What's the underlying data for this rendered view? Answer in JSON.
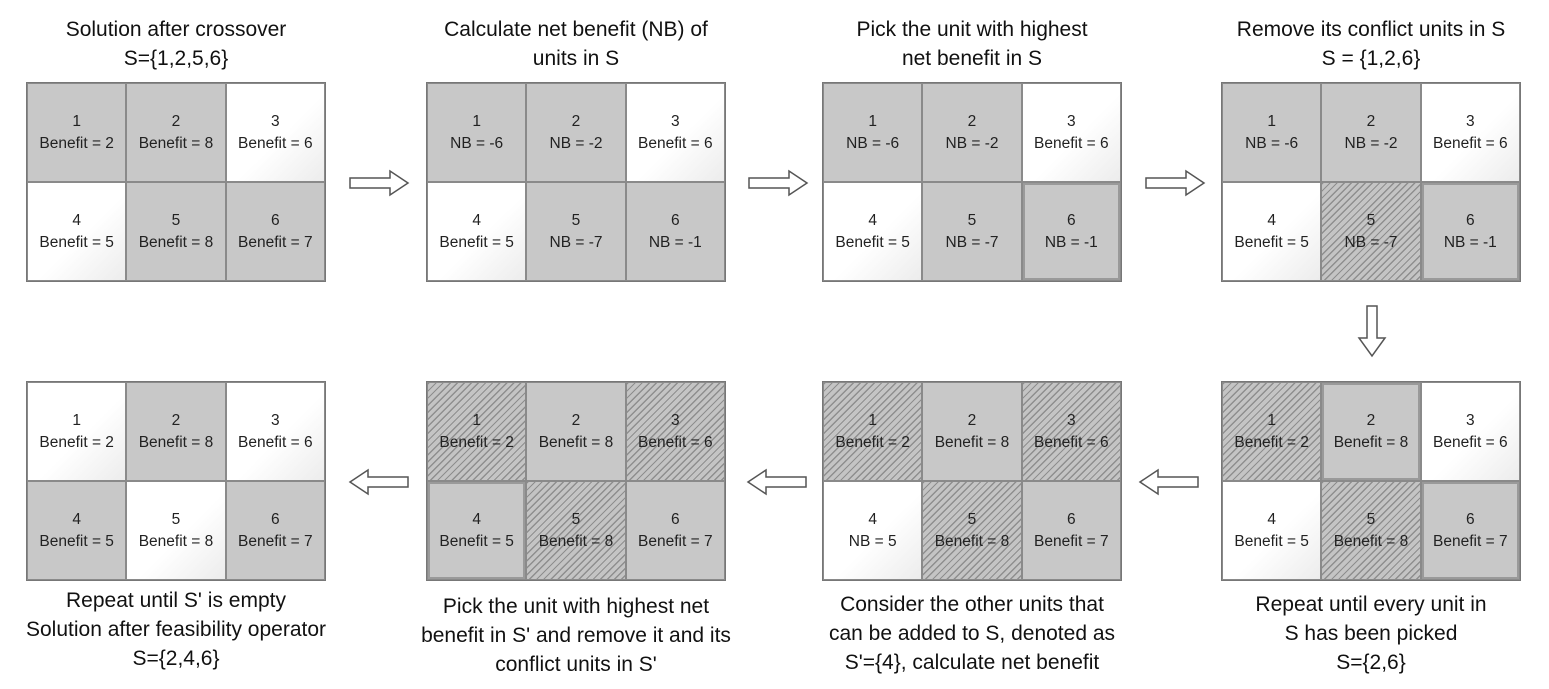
{
  "colors": {
    "gray": "#c8c8c8",
    "white": "#ffffff",
    "hatch": "#8e8e8e",
    "border": "#777777"
  },
  "panels": [
    {
      "caption": [
        "Solution after crossover",
        "S={1,2,5,6}"
      ],
      "cells": [
        {
          "num": "1",
          "text": "Benefit = 2",
          "fill": "gray"
        },
        {
          "num": "2",
          "text": "Benefit = 8",
          "fill": "gray"
        },
        {
          "num": "3",
          "text": "Benefit = 6",
          "fill": "white"
        },
        {
          "num": "4",
          "text": "Benefit = 5",
          "fill": "white"
        },
        {
          "num": "5",
          "text": "Benefit = 8",
          "fill": "gray"
        },
        {
          "num": "6",
          "text": "Benefit = 7",
          "fill": "gray"
        }
      ]
    },
    {
      "caption": [
        "Calculate net benefit (NB) of",
        "units in S"
      ],
      "cells": [
        {
          "num": "1",
          "text": "NB = -6",
          "fill": "gray"
        },
        {
          "num": "2",
          "text": "NB = -2",
          "fill": "gray"
        },
        {
          "num": "3",
          "text": "Benefit = 6",
          "fill": "white"
        },
        {
          "num": "4",
          "text": "Benefit = 5",
          "fill": "white"
        },
        {
          "num": "5",
          "text": "NB = -7",
          "fill": "gray"
        },
        {
          "num": "6",
          "text": "NB = -1",
          "fill": "gray"
        }
      ]
    },
    {
      "caption": [
        "Pick the unit with highest",
        "net benefit in S"
      ],
      "cells": [
        {
          "num": "1",
          "text": "NB = -6",
          "fill": "gray"
        },
        {
          "num": "2",
          "text": "NB = -2",
          "fill": "gray"
        },
        {
          "num": "3",
          "text": "Benefit = 6",
          "fill": "white"
        },
        {
          "num": "4",
          "text": "Benefit = 5",
          "fill": "white"
        },
        {
          "num": "5",
          "text": "NB = -7",
          "fill": "gray"
        },
        {
          "num": "6",
          "text": "NB = -1",
          "fill": "gray",
          "selected": true
        }
      ]
    },
    {
      "caption": [
        "Remove its conflict units in S",
        "S = {1,2,6}"
      ],
      "cells": [
        {
          "num": "1",
          "text": "NB = -6",
          "fill": "gray"
        },
        {
          "num": "2",
          "text": "NB = -2",
          "fill": "gray"
        },
        {
          "num": "3",
          "text": "Benefit = 6",
          "fill": "white"
        },
        {
          "num": "4",
          "text": "Benefit = 5",
          "fill": "white"
        },
        {
          "num": "5",
          "text": "NB = -7",
          "fill": "hatch"
        },
        {
          "num": "6",
          "text": "NB = -1",
          "fill": "gray",
          "selected": true
        }
      ]
    },
    {
      "caption": [
        "Repeat until every unit in",
        "S has been picked",
        "S={2,6}"
      ],
      "cells": [
        {
          "num": "1",
          "text": "Benefit = 2",
          "fill": "hatch"
        },
        {
          "num": "2",
          "text": "Benefit = 8",
          "fill": "gray",
          "selected": true
        },
        {
          "num": "3",
          "text": "Benefit = 6",
          "fill": "white"
        },
        {
          "num": "4",
          "text": "Benefit = 5",
          "fill": "white"
        },
        {
          "num": "5",
          "text": "Benefit = 8",
          "fill": "hatch"
        },
        {
          "num": "6",
          "text": "Benefit = 7",
          "fill": "gray",
          "selected": true
        }
      ]
    },
    {
      "caption": [
        "Consider the other units that",
        "can be added to S, denoted as",
        "S'={4}, calculate net benefit"
      ],
      "cells": [
        {
          "num": "1",
          "text": "Benefit = 2",
          "fill": "hatch"
        },
        {
          "num": "2",
          "text": "Benefit = 8",
          "fill": "gray"
        },
        {
          "num": "3",
          "text": "Benefit = 6",
          "fill": "hatch"
        },
        {
          "num": "4",
          "text": "NB = 5",
          "fill": "white"
        },
        {
          "num": "5",
          "text": "Benefit = 8",
          "fill": "hatch"
        },
        {
          "num": "6",
          "text": "Benefit = 7",
          "fill": "gray"
        }
      ]
    },
    {
      "caption": [
        "Pick the unit with highest net",
        "benefit in S' and remove it and its",
        "conflict units in S'"
      ],
      "cells": [
        {
          "num": "1",
          "text": "Benefit = 2",
          "fill": "hatch"
        },
        {
          "num": "2",
          "text": "Benefit = 8",
          "fill": "gray"
        },
        {
          "num": "3",
          "text": "Benefit = 6",
          "fill": "hatch"
        },
        {
          "num": "4",
          "text": "Benefit = 5",
          "fill": "gray",
          "selected": true
        },
        {
          "num": "5",
          "text": "Benefit = 8",
          "fill": "hatch"
        },
        {
          "num": "6",
          "text": "Benefit = 7",
          "fill": "gray"
        }
      ]
    },
    {
      "caption": [
        "Repeat until S' is empty",
        "Solution after feasibility operator",
        "S={2,4,6}"
      ],
      "cells": [
        {
          "num": "1",
          "text": "Benefit = 2",
          "fill": "white"
        },
        {
          "num": "2",
          "text": "Benefit = 8",
          "fill": "gray"
        },
        {
          "num": "3",
          "text": "Benefit = 6",
          "fill": "white"
        },
        {
          "num": "4",
          "text": "Benefit = 5",
          "fill": "gray"
        },
        {
          "num": "5",
          "text": "Benefit = 8",
          "fill": "white"
        },
        {
          "num": "6",
          "text": "Benefit = 7",
          "fill": "gray"
        }
      ]
    }
  ],
  "arrows": [
    {
      "dir": "right"
    },
    {
      "dir": "right"
    },
    {
      "dir": "right"
    },
    {
      "dir": "down"
    },
    {
      "dir": "left"
    },
    {
      "dir": "left"
    },
    {
      "dir": "left"
    }
  ]
}
